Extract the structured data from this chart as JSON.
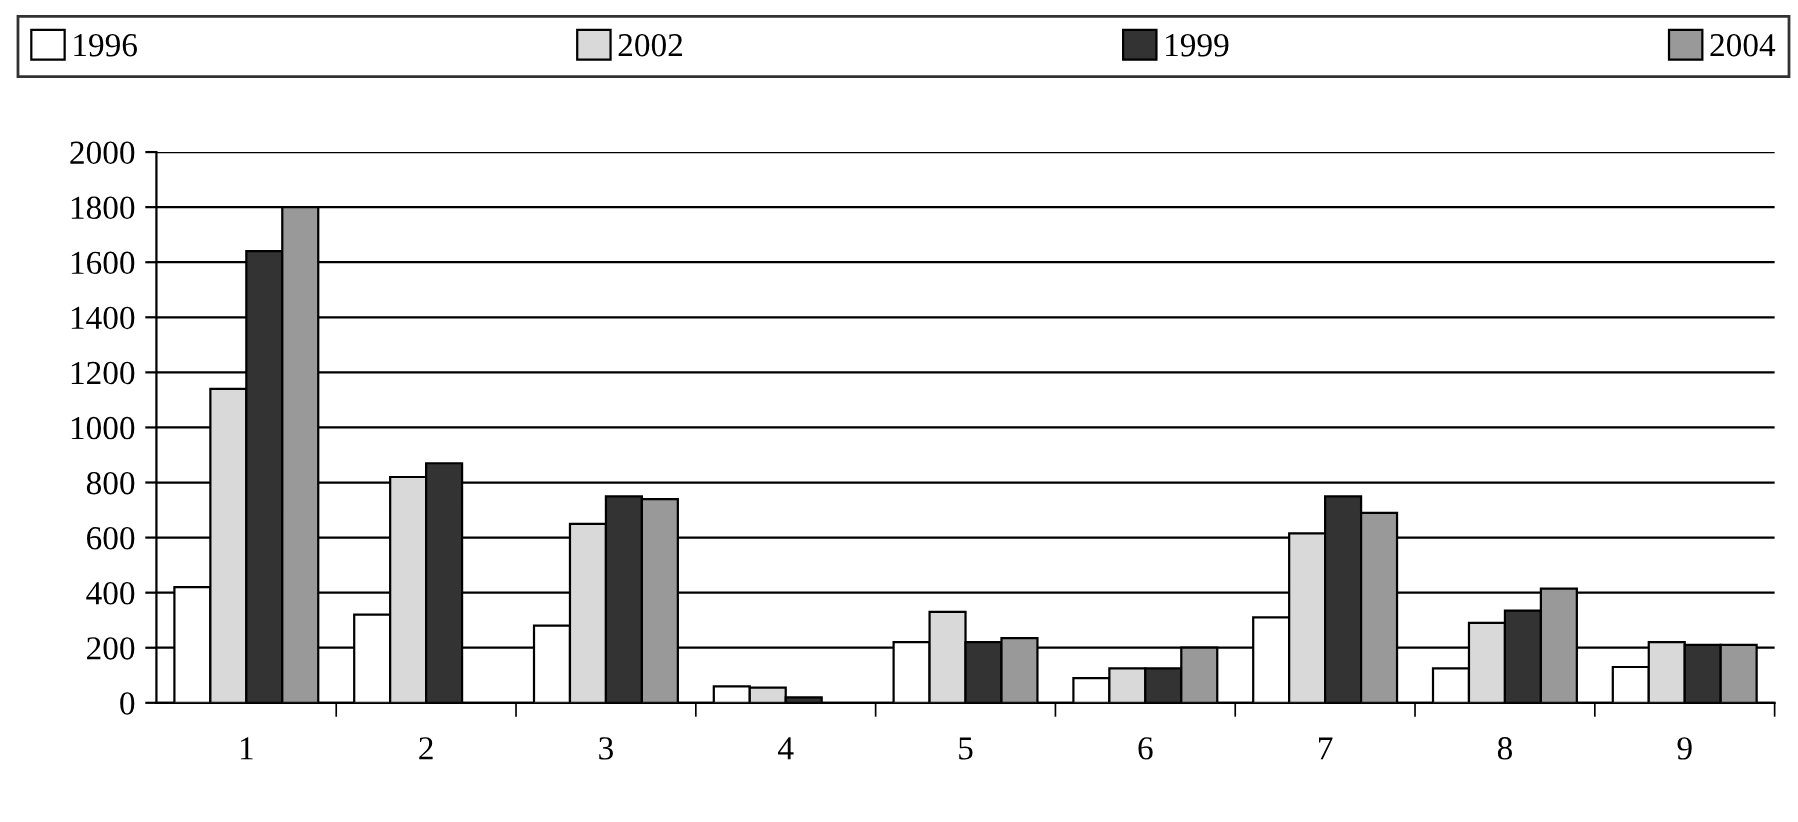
{
  "chart_data": {
    "type": "bar",
    "categories": [
      "1",
      "2",
      "3",
      "4",
      "5",
      "6",
      "7",
      "8",
      "9"
    ],
    "series": [
      {
        "name": "1996",
        "color": "#ffffff",
        "values": [
          420,
          320,
          280,
          60,
          220,
          90,
          310,
          125,
          130
        ]
      },
      {
        "name": "2002",
        "color": "#d9d9d9",
        "values": [
          1140,
          820,
          650,
          55,
          330,
          125,
          615,
          290,
          220
        ]
      },
      {
        "name": "1999",
        "color": "#333333",
        "values": [
          1640,
          870,
          750,
          20,
          220,
          125,
          750,
          335,
          210
        ]
      },
      {
        "name": "2004",
        "color": "#999999",
        "values": [
          1800,
          null,
          740,
          null,
          235,
          200,
          690,
          415,
          210
        ]
      }
    ],
    "ylim": [
      0,
      2000
    ],
    "yticks": [
      0,
      200,
      400,
      600,
      800,
      1000,
      1200,
      1400,
      1600,
      1800,
      2000
    ],
    "grid": "y",
    "legend": "top"
  }
}
